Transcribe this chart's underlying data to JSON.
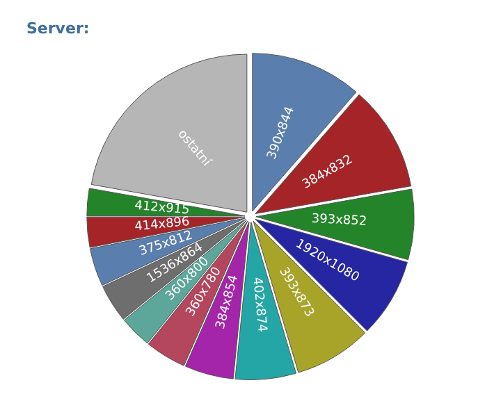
{
  "chart_data": {
    "type": "pie",
    "title": "Server:",
    "categories": [
      "390x844",
      "384x832",
      "393x852",
      "1920x1080",
      "393x873",
      "402x874",
      "384x854",
      "360x780",
      "360x800",
      "1536x864",
      "375x812",
      "414x896",
      "412x915",
      "ostatní"
    ],
    "values": [
      11.4,
      10.8,
      7.2,
      8.1,
      7.9,
      6.2,
      5.0,
      4.2,
      3.3,
      3.9,
      3.9,
      3.1,
      2.8,
      22.2
    ],
    "colors": [
      "#5a7fae",
      "#a52428",
      "#24842a",
      "#2626a2",
      "#a8a42a",
      "#24a6a6",
      "#a424aa",
      "#b4465e",
      "#5ca69a",
      "#6e6e6e",
      "#5a7fae",
      "#a52428",
      "#24842a",
      "#b6b6b6"
    ],
    "legend": false
  }
}
